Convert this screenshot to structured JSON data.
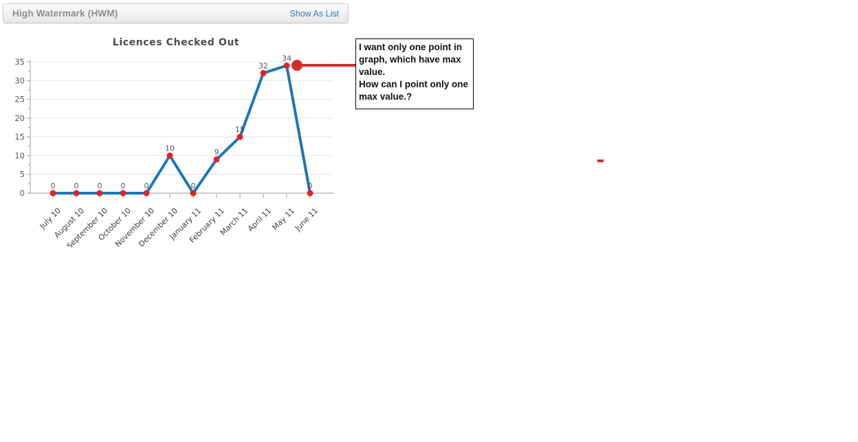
{
  "header": {
    "title": "High Watermark (HWM)",
    "show_as_list_label": "Show As List"
  },
  "chart_data": {
    "type": "line",
    "title": "Licences Checked Out",
    "categories": [
      "July 10",
      "August 10",
      "September 10",
      "October 10",
      "November 10",
      "December 10",
      "January 11",
      "February 11",
      "March 11",
      "April 11",
      "May 11",
      "June 11"
    ],
    "values": [
      0,
      0,
      0,
      0,
      0,
      10,
      0,
      9,
      15,
      32,
      34,
      0
    ],
    "point_labels": [
      "0",
      "0",
      "0",
      "0",
      "0",
      "10",
      "0",
      "9",
      "15",
      "32",
      "34",
      "0"
    ],
    "ylim": [
      0,
      35
    ],
    "yticks": [
      0,
      5,
      10,
      15,
      20,
      25,
      30,
      35
    ],
    "grid": true,
    "legend": "none",
    "x_tick_rotation": -45,
    "max_point": {
      "category": "May 11",
      "value": 34
    },
    "colors": {
      "line": "#1b75ba",
      "marker": "#e32222",
      "grid": "#e4e4e4",
      "axis": "#9b9b9b",
      "text": "#555555"
    }
  },
  "annotation": {
    "note_text": "I want only one point in\ngraph, which have max\nvalue.\nHow can I point only one\nmax value.?",
    "highlight_color": "#d92b2b"
  }
}
